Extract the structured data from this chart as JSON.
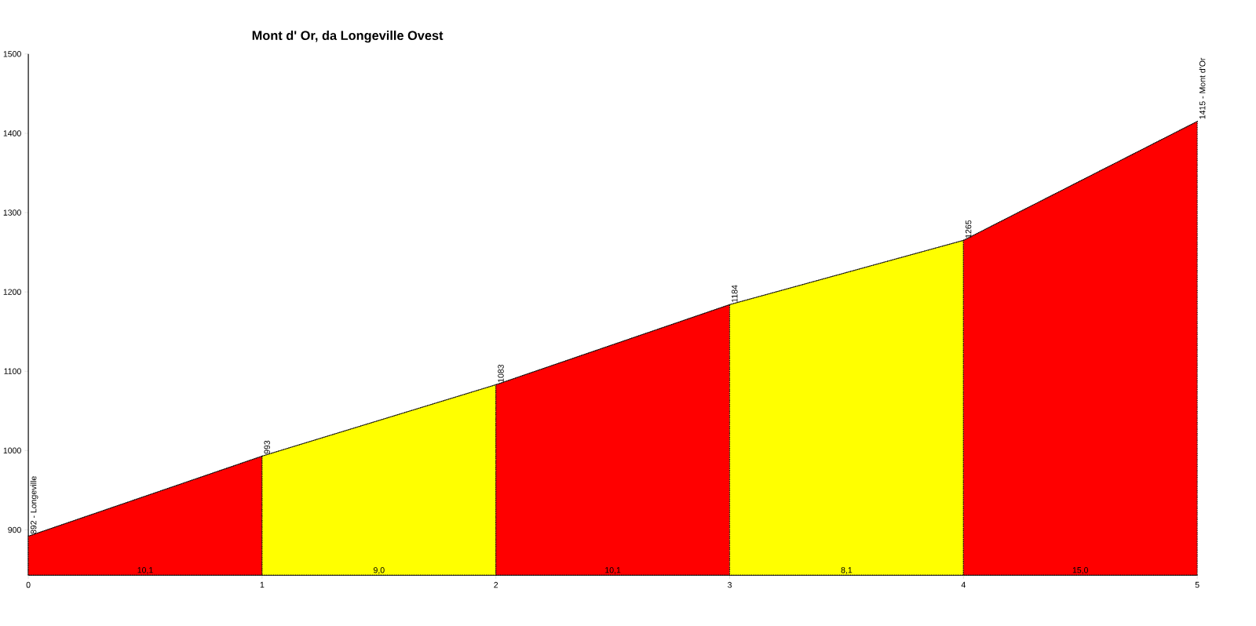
{
  "chart_data": {
    "type": "area",
    "title": "Mont d' Or, da Longeville Ovest",
    "xlim": [
      0,
      5
    ],
    "ylim": [
      843,
      1500
    ],
    "xticks": [
      0,
      1,
      2,
      3,
      4,
      5
    ],
    "yticks": [
      900,
      1000,
      1100,
      1200,
      1300,
      1400,
      1500
    ],
    "series": [
      {
        "color": "#ff0000",
        "x": [
          0,
          1
        ],
        "values": [
          892,
          993
        ]
      },
      {
        "color": "#ffff00",
        "x": [
          1,
          2
        ],
        "values": [
          993,
          1083
        ]
      },
      {
        "color": "#ff0000",
        "x": [
          2,
          3
        ],
        "values": [
          1083,
          1184
        ]
      },
      {
        "color": "#ffff00",
        "x": [
          3,
          4
        ],
        "values": [
          1184,
          1265
        ]
      },
      {
        "color": "#ff0000",
        "x": [
          4,
          5
        ],
        "values": [
          1265,
          1415
        ]
      }
    ],
    "annotations": [
      {
        "text": "892 - Longeville",
        "x": 0,
        "y": 892
      },
      {
        "text": "993",
        "x": 1,
        "y": 993
      },
      {
        "text": "1083",
        "x": 2,
        "y": 1083
      },
      {
        "text": "1184",
        "x": 3,
        "y": 1184
      },
      {
        "text": "1265",
        "x": 4,
        "y": 1265
      },
      {
        "text": "1415 - Mont d'Or",
        "x": 5,
        "y": 1415
      },
      {
        "text": "10,1",
        "x": 0.5,
        "y": 843
      },
      {
        "text": "9,0",
        "x": 1.5,
        "y": 843
      },
      {
        "text": "10,1",
        "x": 2.5,
        "y": 843
      },
      {
        "text": "8,1",
        "x": 3.5,
        "y": 843
      },
      {
        "text": "15,0",
        "x": 4.5,
        "y": 843
      }
    ]
  }
}
